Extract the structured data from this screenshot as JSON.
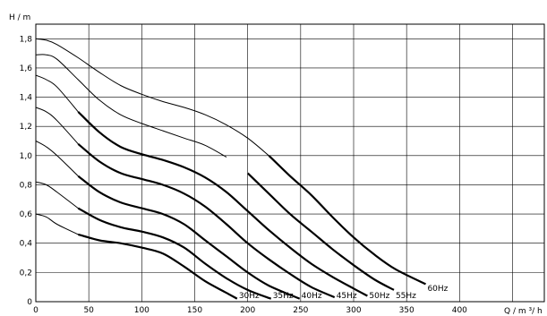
{
  "chart_data": {
    "type": "line",
    "xlabel": "Q / m ³/ h",
    "ylabel": "H / m",
    "xlim": [
      0,
      480
    ],
    "ylim": [
      0,
      1.9
    ],
    "grid": true,
    "x_ticks": [
      0,
      50,
      100,
      150,
      200,
      250,
      300,
      350,
      400,
      450
    ],
    "x_tick_labels": [
      "0",
      "50",
      "100",
      "150",
      "200",
      "250",
      "300",
      "350",
      "400",
      ""
    ],
    "y_ticks": [
      0,
      0.2,
      0.4,
      0.6,
      0.8,
      1.0,
      1.2,
      1.4,
      1.6,
      1.8
    ],
    "y_tick_labels": [
      "0",
      "0,2",
      "0,4",
      "0,6",
      "0,8",
      "1,0",
      "1,2",
      "1,4",
      "1,6",
      "1,8"
    ],
    "series": [
      {
        "name": "30Hz",
        "label_at": [
          190,
          0.0
        ],
        "x": [
          0,
          10,
          20,
          40,
          60,
          80,
          100,
          120,
          140,
          160,
          180,
          190
        ],
        "y": [
          0.6,
          0.58,
          0.53,
          0.46,
          0.42,
          0.4,
          0.37,
          0.33,
          0.24,
          0.14,
          0.06,
          0.02
        ]
      },
      {
        "name": "35Hz",
        "label_at": [
          222,
          0.0
        ],
        "x": [
          0,
          10,
          20,
          40,
          60,
          80,
          100,
          120,
          140,
          160,
          180,
          200,
          222
        ],
        "y": [
          0.82,
          0.8,
          0.75,
          0.64,
          0.56,
          0.51,
          0.48,
          0.44,
          0.37,
          0.26,
          0.16,
          0.08,
          0.02
        ]
      },
      {
        "name": "40Hz",
        "label_at": [
          249,
          0.0
        ],
        "x": [
          0,
          10,
          20,
          40,
          60,
          80,
          100,
          120,
          140,
          160,
          180,
          200,
          220,
          249
        ],
        "y": [
          1.1,
          1.06,
          1.0,
          0.86,
          0.75,
          0.68,
          0.64,
          0.6,
          0.53,
          0.42,
          0.31,
          0.2,
          0.11,
          0.02
        ]
      },
      {
        "name": "45Hz",
        "label_at": [
          282,
          0.0
        ],
        "x": [
          0,
          10,
          20,
          40,
          60,
          80,
          100,
          120,
          140,
          160,
          180,
          200,
          220,
          240,
          260,
          282
        ],
        "y": [
          1.33,
          1.3,
          1.24,
          1.08,
          0.96,
          0.88,
          0.84,
          0.8,
          0.74,
          0.65,
          0.53,
          0.4,
          0.29,
          0.19,
          0.1,
          0.03
        ]
      },
      {
        "name": "50Hz",
        "label_at": [
          313,
          0.0
        ],
        "x": [
          0,
          10,
          20,
          40,
          60,
          80,
          100,
          120,
          140,
          160,
          180,
          200,
          220,
          240,
          260,
          280,
          300,
          313
        ],
        "y": [
          1.55,
          1.52,
          1.47,
          1.3,
          1.16,
          1.06,
          1.01,
          0.97,
          0.92,
          0.85,
          0.75,
          0.62,
          0.49,
          0.37,
          0.26,
          0.17,
          0.09,
          0.04
        ]
      },
      {
        "name": "55Hz",
        "label_at": [
          338,
          0.0
        ],
        "x": [
          0,
          10,
          20,
          40,
          60,
          80,
          100,
          120,
          140,
          160,
          180,
          200,
          220,
          240,
          260,
          280,
          300,
          320,
          338
        ],
        "y": [
          1.69,
          1.69,
          1.66,
          1.52,
          1.38,
          1.28,
          1.22,
          1.17,
          1.12,
          1.07,
          0.99,
          0.88,
          0.74,
          0.6,
          0.48,
          0.36,
          0.25,
          0.15,
          0.08
        ]
      },
      {
        "name": "60Hz",
        "label_at": [
          368,
          0.0
        ],
        "x": [
          0,
          10,
          20,
          40,
          60,
          80,
          100,
          120,
          140,
          160,
          180,
          200,
          220,
          240,
          260,
          280,
          300,
          320,
          340,
          368
        ],
        "y": [
          1.8,
          1.79,
          1.76,
          1.67,
          1.57,
          1.48,
          1.42,
          1.37,
          1.33,
          1.28,
          1.21,
          1.12,
          1.0,
          0.86,
          0.73,
          0.58,
          0.44,
          0.32,
          0.22,
          0.12
        ]
      }
    ]
  }
}
